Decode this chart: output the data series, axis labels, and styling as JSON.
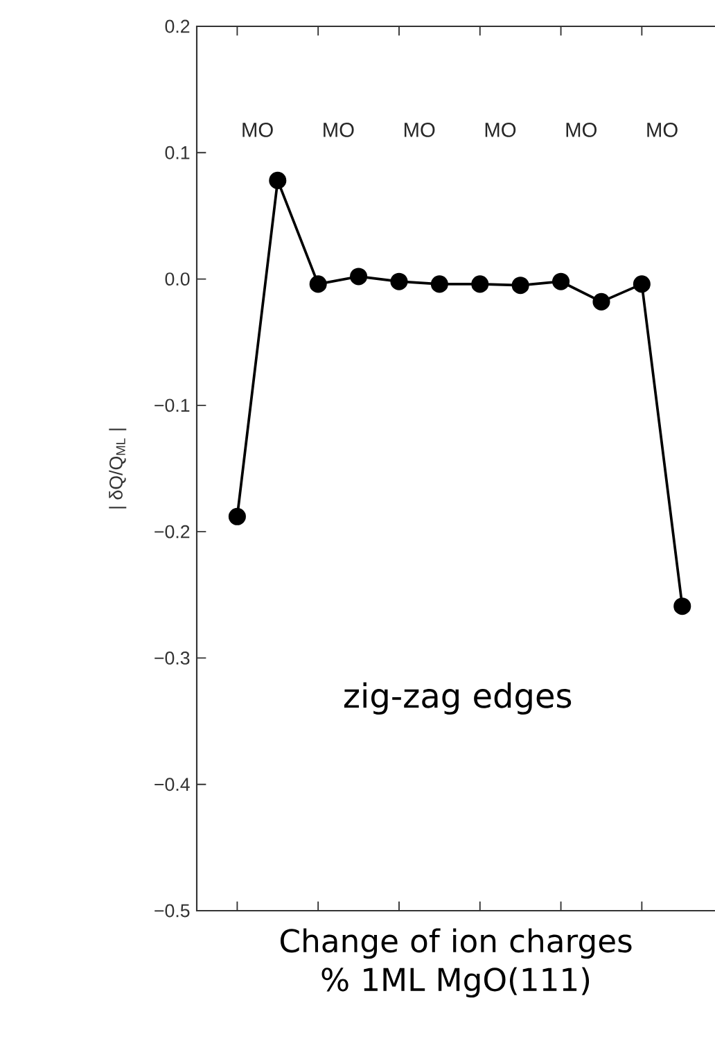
{
  "chart_data": {
    "type": "line",
    "xlabel": "Change of ion charges % 1ML MgO(111)",
    "ylabel": "| δQ/Q$_{ML}$ |",
    "categories": [
      null,
      null,
      null,
      null,
      null,
      null,
      null,
      null,
      null,
      null,
      null,
      null
    ],
    "series": [
      {
        "color": "#000000",
        "values": [
          -0.188,
          0.078,
          -0.004,
          0.002,
          -0.002,
          -0.004,
          -0.004,
          -0.005,
          -0.002,
          -0.018,
          -0.004,
          -0.259
        ]
      }
    ],
    "ylim": [
      -0.5,
      0.2
    ],
    "yticks": [
      {
        "value": 0.2,
        "label": "0.2"
      },
      {
        "value": 0.1,
        "label": "0.1"
      },
      {
        "value": 0.0,
        "label": "0.0"
      },
      {
        "value": -0.1,
        "label": "−0.1"
      },
      {
        "value": -0.2,
        "label": "−0.2"
      },
      {
        "value": -0.3,
        "label": "−0.3"
      },
      {
        "value": -0.4,
        "label": "−0.4"
      },
      {
        "value": -0.5,
        "label": "−0.5"
      }
    ],
    "tick_labels": "y",
    "marker": "circle",
    "line_style": "solid",
    "annotations": [
      "MO",
      "MO",
      "MO",
      "MO",
      "MO",
      "MO",
      "zig-zag edges"
    ]
  }
}
